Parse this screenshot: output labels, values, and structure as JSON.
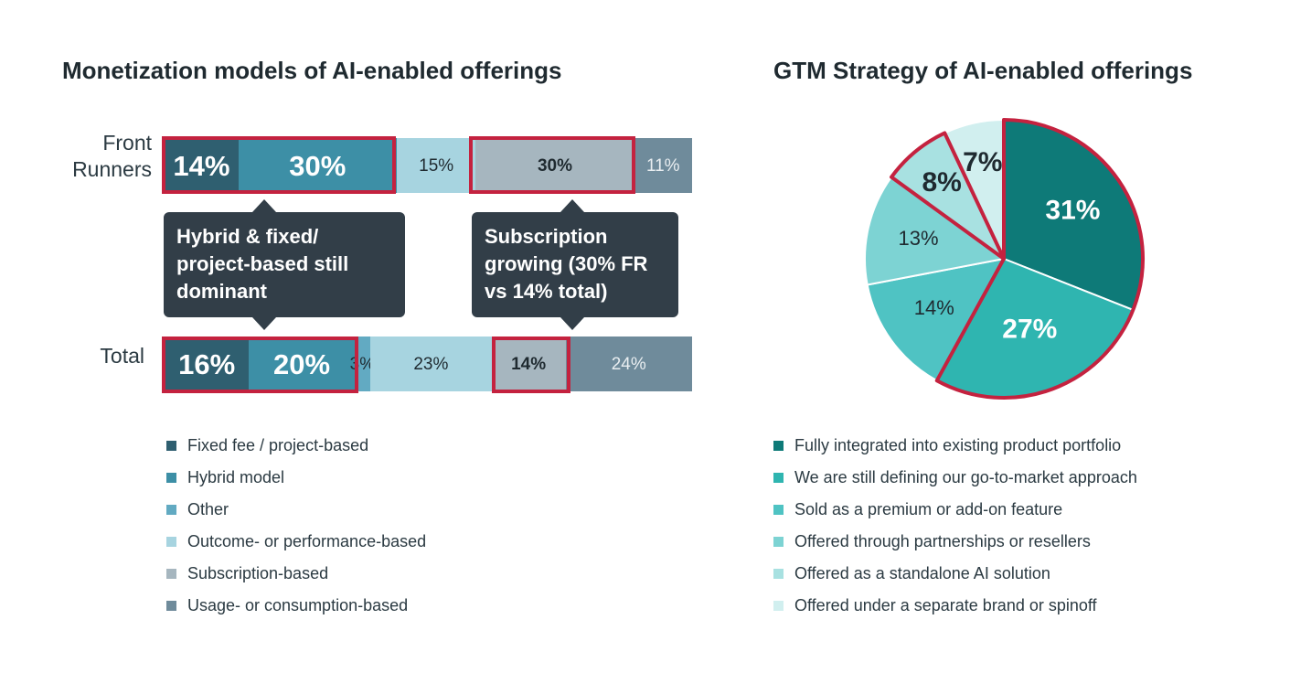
{
  "monetization": {
    "title": "Monetization models of AI-enabled offerings",
    "rows": [
      {
        "id": "front",
        "label_line1": "Front",
        "label_line2": "Runners",
        "segments": [
          {
            "category": "Fixed fee / project-based",
            "value": 14,
            "label": "14%"
          },
          {
            "category": "Hybrid model",
            "value": 30,
            "label": "30%"
          },
          {
            "category": "Outcome- or performance-based",
            "value": 15,
            "label": "15%"
          },
          {
            "category": "Subscription-based",
            "value": 30,
            "label": "30%"
          },
          {
            "category": "Usage- or consumption-based",
            "value": 11,
            "label": "11%"
          }
        ]
      },
      {
        "id": "total",
        "label_line1": "Total",
        "label_line2": "",
        "segments": [
          {
            "category": "Fixed fee / project-based",
            "value": 16,
            "label": "16%"
          },
          {
            "category": "Hybrid model",
            "value": 20,
            "label": "20%"
          },
          {
            "category": "Other",
            "value": 3,
            "label": "3%"
          },
          {
            "category": "Outcome- or performance-based",
            "value": 23,
            "label": "23%"
          },
          {
            "category": "Subscription-based",
            "value": 14,
            "label": "14%"
          },
          {
            "category": "Usage- or consumption-based",
            "value": 24,
            "label": "24%"
          }
        ]
      }
    ],
    "callouts": {
      "hybrid": {
        "line1": "Hybrid & fixed/",
        "line2": "project-based still",
        "line3": "dominant"
      },
      "subscription": {
        "line1": "Subscription",
        "line2": "growing (30% FR",
        "line3": "vs 14% total)"
      }
    },
    "legend": [
      {
        "label": "Fixed fee / project-based",
        "color": "#2f5f70"
      },
      {
        "label": "Hybrid model",
        "color": "#3d8fa6"
      },
      {
        "label": "Other",
        "color": "#62aac2"
      },
      {
        "label": "Outcome- or performance-based",
        "color": "#a7d4e0"
      },
      {
        "label": "Subscription-based",
        "color": "#a6b6bf"
      },
      {
        "label": "Usage- or consumption-based",
        "color": "#6f8b9b"
      }
    ],
    "highlight_color": "#c4223f"
  },
  "gtm": {
    "title": "GTM Strategy of AI-enabled offerings",
    "slices": [
      {
        "label": "Fully integrated into existing product portfolio",
        "value": 31,
        "display": "31%",
        "color": "#0e7a78"
      },
      {
        "label": "We are still defining our go-to-market approach",
        "value": 27,
        "display": "27%",
        "color": "#2fb5b0"
      },
      {
        "label": "Sold as a premium or add-on feature",
        "value": 14,
        "display": "14%",
        "color": "#4fc3c3"
      },
      {
        "label": "Offered through partnerships or resellers",
        "value": 13,
        "display": "13%",
        "color": "#7dd3d3"
      },
      {
        "label": "Offered as a standalone AI solution",
        "value": 8,
        "display": "8%",
        "color": "#a8e1e1"
      },
      {
        "label": "Offered under a separate brand or spinoff",
        "value": 7,
        "display": "7%",
        "color": "#d1efef"
      }
    ]
  },
  "chart_data": [
    {
      "type": "bar",
      "orientation": "horizontal",
      "stacked": true,
      "title": "Monetization models of AI-enabled offerings",
      "categories": [
        "Front Runners",
        "Total"
      ],
      "series": [
        {
          "name": "Fixed fee / project-based",
          "values": [
            14,
            16
          ]
        },
        {
          "name": "Hybrid model",
          "values": [
            30,
            20
          ]
        },
        {
          "name": "Other",
          "values": [
            0,
            3
          ]
        },
        {
          "name": "Outcome- or performance-based",
          "values": [
            15,
            23
          ]
        },
        {
          "name": "Subscription-based",
          "values": [
            30,
            14
          ]
        },
        {
          "name": "Usage- or consumption-based",
          "values": [
            11,
            24
          ]
        }
      ],
      "legend_position": "bottom",
      "annotations": [
        "Hybrid & fixed/ project-based still dominant",
        "Subscription growing (30% FR vs 14% total)"
      ]
    },
    {
      "type": "pie",
      "title": "GTM Strategy of AI-enabled offerings",
      "categories": [
        "Fully integrated into existing product portfolio",
        "We are still defining our go-to-market approach",
        "Sold as a premium or add-on feature",
        "Offered through partnerships or resellers",
        "Offered as a standalone AI solution",
        "Offered under a separate brand or spinoff"
      ],
      "values": [
        31,
        27,
        14,
        13,
        8,
        7
      ],
      "highlighted": [
        "Fully integrated into existing product portfolio",
        "We are still defining our go-to-market approach",
        "Offered as a standalone AI solution"
      ],
      "legend_position": "bottom"
    }
  ]
}
